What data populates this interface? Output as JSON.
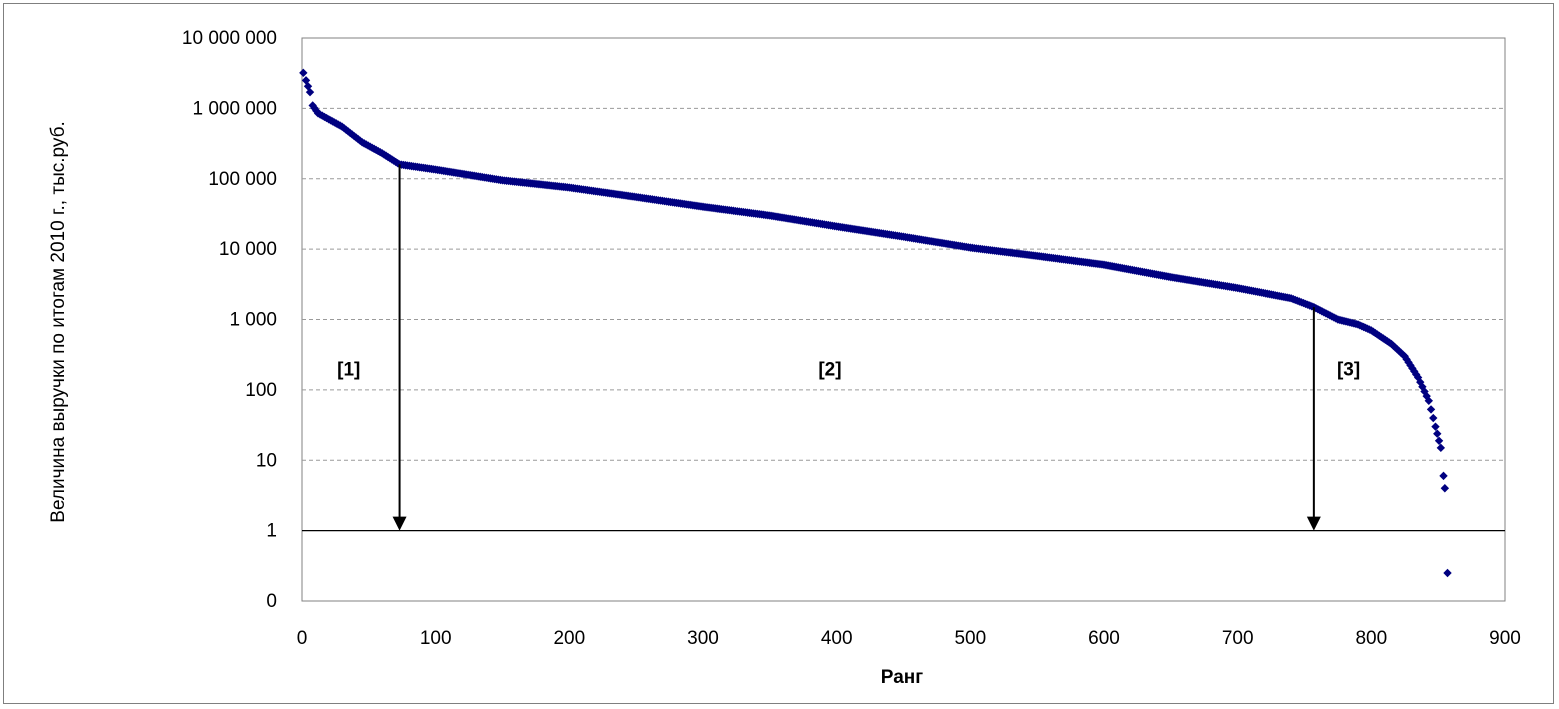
{
  "chart_data": {
    "type": "scatter",
    "title": "",
    "xlabel": "Ранг",
    "ylabel": "Величина выручки по итогам 2010 г., тыс.руб.",
    "xlim": [
      0,
      900
    ],
    "x_ticks": [
      "0",
      "100",
      "200",
      "300",
      "400",
      "500",
      "600",
      "700",
      "800",
      "900"
    ],
    "y_scale": "log",
    "ylim_decades": [
      -1,
      7
    ],
    "y_ticks": [
      "10 000 000",
      "1 000 000",
      "100 000",
      "10 000",
      "1 000",
      "100",
      "10",
      "1",
      "0"
    ],
    "grid": "horizontal dashed",
    "marker_color": "#000080",
    "arrow_color": "#000000",
    "arrows": [
      {
        "x": 73,
        "y_from": 160000,
        "y_to": 1
      },
      {
        "x": 757,
        "y_from": 1500,
        "y_to": 1
      }
    ],
    "region_labels": [
      {
        "text": "[1]",
        "x": 35,
        "y": 200
      },
      {
        "text": "[2]",
        "x": 395,
        "y": 200
      },
      {
        "text": "[3]",
        "x": 783,
        "y": 200
      }
    ],
    "series_anchors": [
      [
        1,
        3200000
      ],
      [
        3,
        2500000
      ],
      [
        6,
        1700000
      ],
      [
        8,
        1100000
      ],
      [
        12,
        850000
      ],
      [
        20,
        700000
      ],
      [
        30,
        550000
      ],
      [
        45,
        330000
      ],
      [
        60,
        230000
      ],
      [
        73,
        160000
      ],
      [
        100,
        135000
      ],
      [
        150,
        95000
      ],
      [
        200,
        75000
      ],
      [
        250,
        55000
      ],
      [
        300,
        40000
      ],
      [
        350,
        30000
      ],
      [
        400,
        21000
      ],
      [
        450,
        15000
      ],
      [
        500,
        10500
      ],
      [
        550,
        8000
      ],
      [
        600,
        6000
      ],
      [
        650,
        4000
      ],
      [
        700,
        2800
      ],
      [
        740,
        2000
      ],
      [
        757,
        1500
      ],
      [
        775,
        1000
      ],
      [
        790,
        850
      ],
      [
        800,
        700
      ],
      [
        815,
        450
      ],
      [
        825,
        300
      ],
      [
        835,
        150
      ],
      [
        843,
        70
      ],
      [
        848,
        30
      ],
      [
        852,
        15
      ],
      [
        854,
        6
      ],
      [
        855,
        4
      ],
      [
        857,
        0.25
      ]
    ]
  }
}
